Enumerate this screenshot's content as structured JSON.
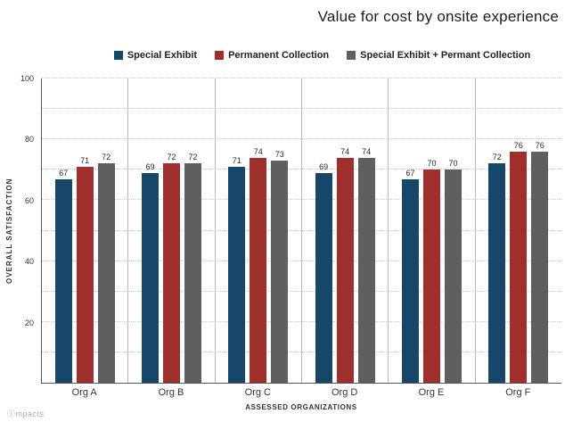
{
  "title": "Value for cost by onsite experience",
  "footer": "ⓘmpacts",
  "legend": [
    {
      "label": "Special Exhibit",
      "color": "#17466b"
    },
    {
      "label": "Permanent Collection",
      "color": "#9e2f2c"
    },
    {
      "label": "Special Exhibit + Permant Collection",
      "color": "#5e5f61"
    }
  ],
  "chart_data": {
    "type": "bar",
    "title": "Value for cost by onsite experience",
    "categories": [
      "Org A",
      "Org B",
      "Org C",
      "Org D",
      "Org E",
      "Org F"
    ],
    "series": [
      {
        "name": "Special Exhibit",
        "color": "#17466b",
        "values": [
          67,
          69,
          71,
          69,
          67,
          72
        ]
      },
      {
        "name": "Permanent Collection",
        "color": "#9e2f2c",
        "values": [
          71,
          72,
          74,
          74,
          70,
          76
        ]
      },
      {
        "name": "Special Exhibit + Permant Collection",
        "color": "#5e5f61",
        "values": [
          72,
          72,
          73,
          74,
          70,
          76
        ]
      }
    ],
    "xlabel": "ASSESSED ORGANIZATIONS",
    "ylabel": "OVERALL SATISFACTION",
    "ylim": [
      0,
      100
    ],
    "yticks": [
      20,
      40,
      60,
      80,
      100
    ],
    "grid": "dotted horizontal, every 10",
    "legend_position": "top"
  }
}
